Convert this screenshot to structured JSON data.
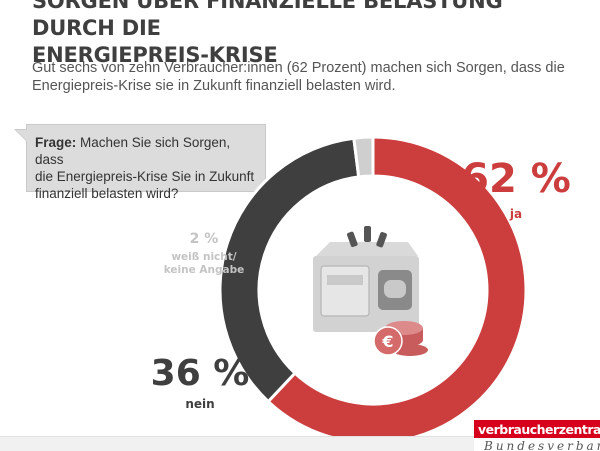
{
  "header": {
    "title_lines": [
      "SORGEN ÜBER FINANZIELLE BELASTUNG DURCH DIE",
      "ENERGIEPREIS-KRISE"
    ],
    "subtitle_lines": [
      "Gut sechs von zehn Verbraucher:innen (62 Prozent) machen sich Sorgen, dass die",
      "Energiepreis-Krise sie in Zukunft finanziell belasten wird."
    ]
  },
  "question": {
    "label": "Frage:",
    "lines": [
      " Machen Sie sich Sorgen, dass",
      "die Energiepreis-Krise  Sie in Zukunft",
      "finanziell belasten wird?"
    ]
  },
  "colors": {
    "ja": "#cc3d3d",
    "nein": "#3f3f40",
    "unknown": "#cfcfcf",
    "brand": "#d6001c"
  },
  "chart_data": {
    "type": "pie",
    "style": "donut",
    "title": "",
    "slices": [
      {
        "label": "ja",
        "value": 62,
        "value_label": "62 %"
      },
      {
        "label": "nein",
        "value": 36,
        "value_label": "36 %"
      },
      {
        "label_lines": [
          "weiß nicht/",
          "keine Angabe"
        ],
        "value": 2,
        "value_label": "2 %"
      }
    ],
    "center_icon": "wallet-with-euro-coins-icon"
  },
  "brand": {
    "name": "verbraucherzentrale",
    "tagline": "Bundesverband"
  }
}
